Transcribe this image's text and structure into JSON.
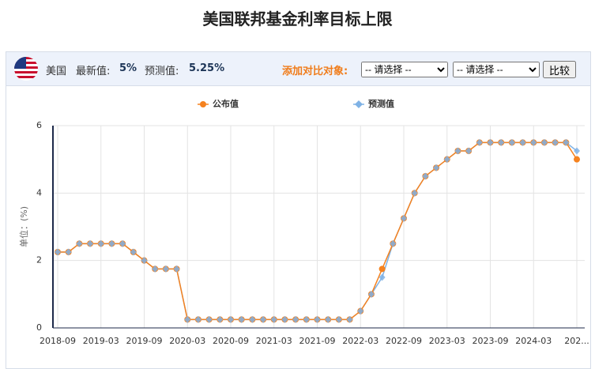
{
  "header": {
    "title": "美国联邦基金利率目标上限"
  },
  "toolbar": {
    "country": "美国",
    "latest_label": "最新值:",
    "latest_value": "5%",
    "forecast_label": "预测值:",
    "forecast_value": "5.25%",
    "compare_label": "添加对比对象:",
    "select_1": "-- 请选择 --",
    "select_2": "-- 请选择 --",
    "button": "比较"
  },
  "chart_data": {
    "type": "line",
    "y_label": "单位：(%)",
    "categories": [
      "2018-09",
      null,
      null,
      null,
      "2019-03",
      null,
      null,
      null,
      "2019-09",
      null,
      null,
      null,
      "2020-03",
      null,
      null,
      null,
      "2020-09",
      null,
      null,
      null,
      "2021-03",
      null,
      null,
      null,
      "2021-09",
      null,
      null,
      null,
      "2022-03",
      null,
      null,
      null,
      "2022-09",
      null,
      null,
      null,
      "2023-03",
      null,
      null,
      null,
      "2023-09",
      null,
      null,
      null,
      "2024-03",
      null,
      null,
      null,
      "202..."
    ],
    "series": [
      {
        "name": "公布值",
        "color": "#f5821f",
        "marker": "circle",
        "values": [
          2.25,
          2.25,
          2.5,
          2.5,
          2.5,
          2.5,
          2.5,
          2.25,
          2.0,
          1.75,
          1.75,
          1.75,
          0.25,
          0.25,
          0.25,
          0.25,
          0.25,
          0.25,
          0.25,
          0.25,
          0.25,
          0.25,
          0.25,
          0.25,
          0.25,
          0.25,
          0.25,
          0.25,
          0.5,
          1.0,
          1.75,
          2.5,
          3.25,
          4.0,
          4.5,
          4.75,
          5.0,
          5.25,
          5.25,
          5.5,
          5.5,
          5.5,
          5.5,
          5.5,
          5.5,
          5.5,
          5.5,
          5.5,
          5.0
        ]
      },
      {
        "name": "预测值",
        "color": "#7fb2e5",
        "marker": "diamond",
        "values": [
          2.25,
          2.25,
          2.5,
          2.5,
          2.5,
          2.5,
          2.5,
          2.25,
          2.0,
          1.75,
          1.75,
          1.75,
          0.25,
          0.25,
          0.25,
          0.25,
          0.25,
          0.25,
          0.25,
          0.25,
          0.25,
          0.25,
          0.25,
          0.25,
          0.25,
          0.25,
          0.25,
          0.25,
          0.5,
          1.0,
          1.5,
          2.5,
          3.25,
          4.0,
          4.5,
          4.75,
          5.0,
          5.25,
          5.25,
          5.5,
          5.5,
          5.5,
          5.5,
          5.5,
          5.5,
          5.5,
          5.5,
          5.5,
          5.25
        ]
      }
    ],
    "ylim": [
      0,
      6
    ],
    "yticks": [
      0,
      2,
      4,
      6
    ],
    "grid": true
  }
}
